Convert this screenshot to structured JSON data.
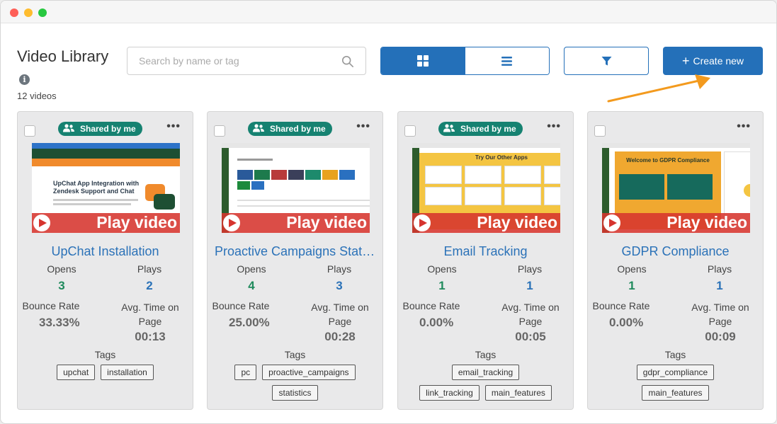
{
  "header": {
    "title": "Video Library",
    "video_count": "12 videos"
  },
  "search": {
    "placeholder": "Search by name or tag"
  },
  "toolbar": {
    "create_label": "Create new",
    "grid_view_icon": "grid-icon",
    "list_view_icon": "list-icon",
    "filter_icon": "filter-icon"
  },
  "colors": {
    "primary": "#2470b9",
    "shared_badge": "#168271",
    "annotation_arrow": "#f39a1e",
    "play_bar": "#d6342e"
  },
  "labels": {
    "shared": "Shared by me",
    "play": "Play video",
    "opens": "Opens",
    "plays": "Plays",
    "bounce_rate": "Bounce Rate",
    "avg_time": "Avg. Time on Page",
    "tags": "Tags"
  },
  "videos": [
    {
      "title": "UpChat Installation",
      "shared": true,
      "opens": "3",
      "plays": "2",
      "bounce_rate": "33.33%",
      "avg_time": "00:13",
      "tags": [
        "upchat",
        "installation"
      ],
      "thumb_heading": "UpChat App Integration with Zendesk Support and Chat"
    },
    {
      "title": "Proactive Campaigns Statis...",
      "shared": true,
      "opens": "4",
      "plays": "3",
      "bounce_rate": "25.00%",
      "avg_time": "00:28",
      "tags": [
        "pc",
        "proactive_campaigns",
        "statistics"
      ]
    },
    {
      "title": "Email Tracking",
      "shared": true,
      "opens": "1",
      "plays": "1",
      "bounce_rate": "0.00%",
      "avg_time": "00:05",
      "tags": [
        "email_tracking",
        "link_tracking",
        "main_features"
      ],
      "thumb_heading": "Try Our Other Apps"
    },
    {
      "title": "GDPR Compliance",
      "shared": false,
      "opens": "1",
      "plays": "1",
      "bounce_rate": "0.00%",
      "avg_time": "00:09",
      "tags": [
        "gdpr_compliance",
        "main_features"
      ],
      "thumb_heading": "Welcome to GDPR Compliance"
    }
  ]
}
